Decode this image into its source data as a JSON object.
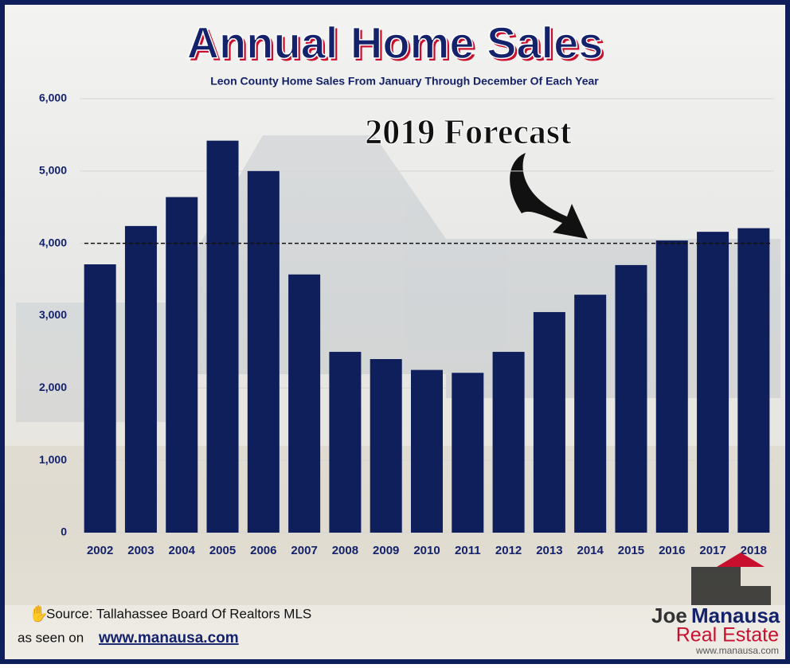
{
  "chart_data": {
    "type": "bar",
    "title": "Annual Home Sales",
    "subtitle": "Leon County Home Sales From January Through December Of Each Year",
    "annotation": "2019 Forecast",
    "categories": [
      "2002",
      "2003",
      "2004",
      "2005",
      "2006",
      "2007",
      "2008",
      "2009",
      "2010",
      "2011",
      "2012",
      "2013",
      "2014",
      "2015",
      "2016",
      "2017",
      "2018"
    ],
    "values": [
      3710,
      4240,
      4640,
      5420,
      5000,
      3570,
      2500,
      2400,
      2250,
      2210,
      2500,
      3050,
      3290,
      3700,
      4040,
      4160,
      4210
    ],
    "color": "#0f1f5c",
    "forecast_line": 4000,
    "ylim": [
      0,
      6000
    ],
    "yticks": [
      0,
      {
        "value": 1000,
        "label": "1,000"
      },
      {
        "value": 2000,
        "label": "2,000"
      },
      {
        "value": 3000,
        "label": "3,000"
      },
      {
        "value": 4000,
        "label": "4,000"
      },
      {
        "value": 5000,
        "label": "5,000"
      },
      {
        "value": 6000,
        "label": "6,000"
      }
    ],
    "grid": true
  },
  "footer": {
    "source": "Source: Tallahassee Board Of Realtors MLS",
    "seen_on": "as seen on",
    "website": "www.manausa.com"
  },
  "logo": {
    "first": "Joe",
    "last": "Manausa",
    "tagline": "Real Estate",
    "url": "www.manausa.com"
  }
}
